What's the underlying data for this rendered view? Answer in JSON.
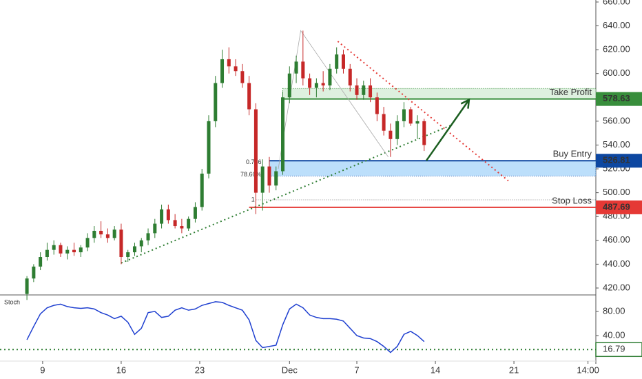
{
  "chart_data": {
    "type": "candlestick",
    "indicator_title": "Stoch",
    "x": [
      -1.4,
      -0.8,
      -0.2,
      0.4,
      1,
      1.6,
      2.2,
      2.8,
      3.4,
      4,
      4.6,
      5.2,
      5.8,
      6.4,
      7,
      7.6,
      8.2,
      8.8,
      9.4,
      10,
      10.6,
      11.2,
      11.8,
      12.4,
      13,
      13.6,
      14.2,
      14.8,
      15.4,
      16,
      16.6,
      17.2,
      17.8,
      18.4,
      19,
      19.6,
      20.2,
      20.8,
      21.4,
      22,
      22.6,
      23.2,
      23.8,
      24.4,
      25,
      25.6,
      26.2,
      26.8,
      27.4,
      28,
      28.6,
      29.2,
      29.8,
      30.4,
      31,
      31.6,
      32.2,
      32.8,
      33.4,
      34
    ],
    "open": [
      415,
      428,
      438,
      446,
      452,
      456,
      449,
      452,
      450,
      454,
      462,
      468,
      465,
      462,
      469,
      446,
      450,
      455,
      460,
      466,
      474,
      486,
      477,
      472,
      470,
      478,
      488,
      516,
      560,
      592,
      612,
      606,
      602,
      592,
      570,
      500,
      522,
      506,
      518,
      580,
      600,
      610,
      596,
      588,
      592,
      590,
      604,
      616,
      604,
      590,
      582,
      590,
      580,
      566,
      552,
      545,
      560,
      570,
      558,
      560
    ],
    "high": [
      430,
      440,
      450,
      458,
      460,
      458,
      455,
      458,
      456,
      466,
      472,
      476,
      470,
      472,
      474,
      452,
      458,
      462,
      470,
      478,
      490,
      490,
      482,
      478,
      480,
      492,
      520,
      565,
      598,
      620,
      622,
      612,
      608,
      598,
      575,
      528,
      530,
      522,
      585,
      606,
      615,
      636,
      600,
      596,
      602,
      608,
      622,
      620,
      608,
      596,
      594,
      596,
      584,
      572,
      558,
      565,
      576,
      572,
      565,
      562
    ],
    "low": [
      410,
      425,
      435,
      443,
      448,
      446,
      444,
      447,
      446,
      451,
      458,
      462,
      458,
      460,
      440,
      442,
      447,
      450,
      456,
      462,
      470,
      474,
      470,
      466,
      468,
      475,
      485,
      512,
      555,
      588,
      600,
      598,
      588,
      565,
      482,
      485,
      500,
      502,
      515,
      575,
      592,
      590,
      582,
      580,
      585,
      586,
      600,
      600,
      585,
      578,
      578,
      576,
      560,
      548,
      530,
      540,
      555,
      556,
      545,
      535
    ],
    "close": [
      428,
      438,
      446,
      452,
      456,
      449,
      452,
      450,
      454,
      462,
      468,
      465,
      462,
      469,
      446,
      450,
      455,
      460,
      466,
      474,
      486,
      477,
      472,
      470,
      478,
      488,
      516,
      560,
      592,
      612,
      606,
      602,
      592,
      570,
      500,
      522,
      506,
      518,
      580,
      600,
      610,
      596,
      588,
      592,
      590,
      604,
      616,
      604,
      590,
      582,
      590,
      580,
      566,
      552,
      545,
      560,
      570,
      558,
      560,
      540
    ],
    "up_color": "#2e7d32",
    "down_color": "#c62828",
    "xlim": [
      -3.8,
      49.3
    ],
    "xticks": [
      {
        "value": 0,
        "label": "9"
      },
      {
        "value": 7,
        "label": "16"
      },
      {
        "value": 14,
        "label": "23"
      },
      {
        "value": 22,
        "label": "Dec"
      },
      {
        "value": 28,
        "label": "7"
      },
      {
        "value": 35,
        "label": "14"
      },
      {
        "value": 42,
        "label": "21"
      },
      {
        "value": 48.6,
        "label": "14:00"
      }
    ],
    "ylim": [
      414.2,
      661.7
    ],
    "yticks": [
      {
        "value": 420,
        "label": "420.00"
      },
      {
        "value": 440,
        "label": "440.00"
      },
      {
        "value": 460,
        "label": "460.00"
      },
      {
        "value": 480,
        "label": "480.00"
      },
      {
        "value": 500,
        "label": "500.00"
      },
      {
        "value": 520,
        "label": "520.00"
      },
      {
        "value": 540,
        "label": "540.00"
      },
      {
        "value": 560,
        "label": "560.00"
      },
      {
        "value": 580,
        "label": "580.00"
      },
      {
        "value": 600,
        "label": "600.00"
      },
      {
        "value": 620,
        "label": "620.00"
      },
      {
        "value": 640,
        "label": "640.00"
      },
      {
        "value": 660,
        "label": "660.00"
      }
    ],
    "levels": [
      {
        "name": "Take Profit",
        "value": 578.63,
        "label": "578.63",
        "color": "#388e3c",
        "zone": [
          578.63,
          587.5
        ],
        "zone_color": "#c8e6c9",
        "start": 21.4
      },
      {
        "name": "Buy Entry",
        "value": 526.81,
        "label": "526.81",
        "color": "#0d47a1",
        "zone": [
          514,
          526.81
        ],
        "zone_color": "#90caf9",
        "start": 20.2
      },
      {
        "name": "Stop Loss",
        "value": 487.69,
        "label": "487.69",
        "color": "#e53935",
        "start": 18.4
      }
    ],
    "fib_labels": [
      {
        "text": "0.786",
        "x": 19.5,
        "y": 525.5,
        "color": "#e57373"
      },
      {
        "text": "78.60%",
        "x": 19.5,
        "y": 515,
        "color": "#1e88e5"
      },
      {
        "text": "1",
        "x": 18.9,
        "y": 494,
        "color": "#555"
      }
    ],
    "fib_line": {
      "value": 494,
      "start": 19
    },
    "trendlines": [
      {
        "x": [
          7,
          36.5
        ],
        "y": [
          441,
          557
        ],
        "color": "#2e7d32",
        "dash": "2,4"
      },
      {
        "x": [
          26.3,
          41.5
        ],
        "y": [
          627,
          510
        ],
        "color": "#e53935",
        "dash": "2,4"
      },
      {
        "x": [
          21,
          23,
          30.8
        ],
        "y": [
          520,
          636,
          530
        ],
        "color": "#aaa",
        "dash": ""
      }
    ],
    "arrow": {
      "x": [
        34.2,
        38
      ],
      "y": [
        527,
        578
      ],
      "color": "#1b5e20"
    },
    "stoch": {
      "values": [
        33,
        55,
        76,
        86,
        90,
        92,
        88,
        86,
        85,
        86,
        84,
        78,
        74,
        68,
        72,
        62,
        42,
        52,
        78,
        80,
        70,
        72,
        82,
        86,
        82,
        84,
        90,
        93,
        96,
        95,
        90,
        86,
        82,
        66,
        32,
        20,
        22,
        24,
        58,
        84,
        92,
        86,
        74,
        70,
        68,
        68,
        67,
        64,
        52,
        40,
        36,
        35,
        30,
        22,
        12,
        22,
        42,
        47,
        40,
        30
      ],
      "color": "#1e3fd0",
      "ylim": [
        0,
        105
      ],
      "yticks": [
        {
          "value": 40,
          "label": "40.00"
        },
        {
          "value": 80,
          "label": "80.00"
        }
      ],
      "level": {
        "value": 16.79,
        "label": "16.79",
        "color": "#2e7d32"
      }
    }
  }
}
